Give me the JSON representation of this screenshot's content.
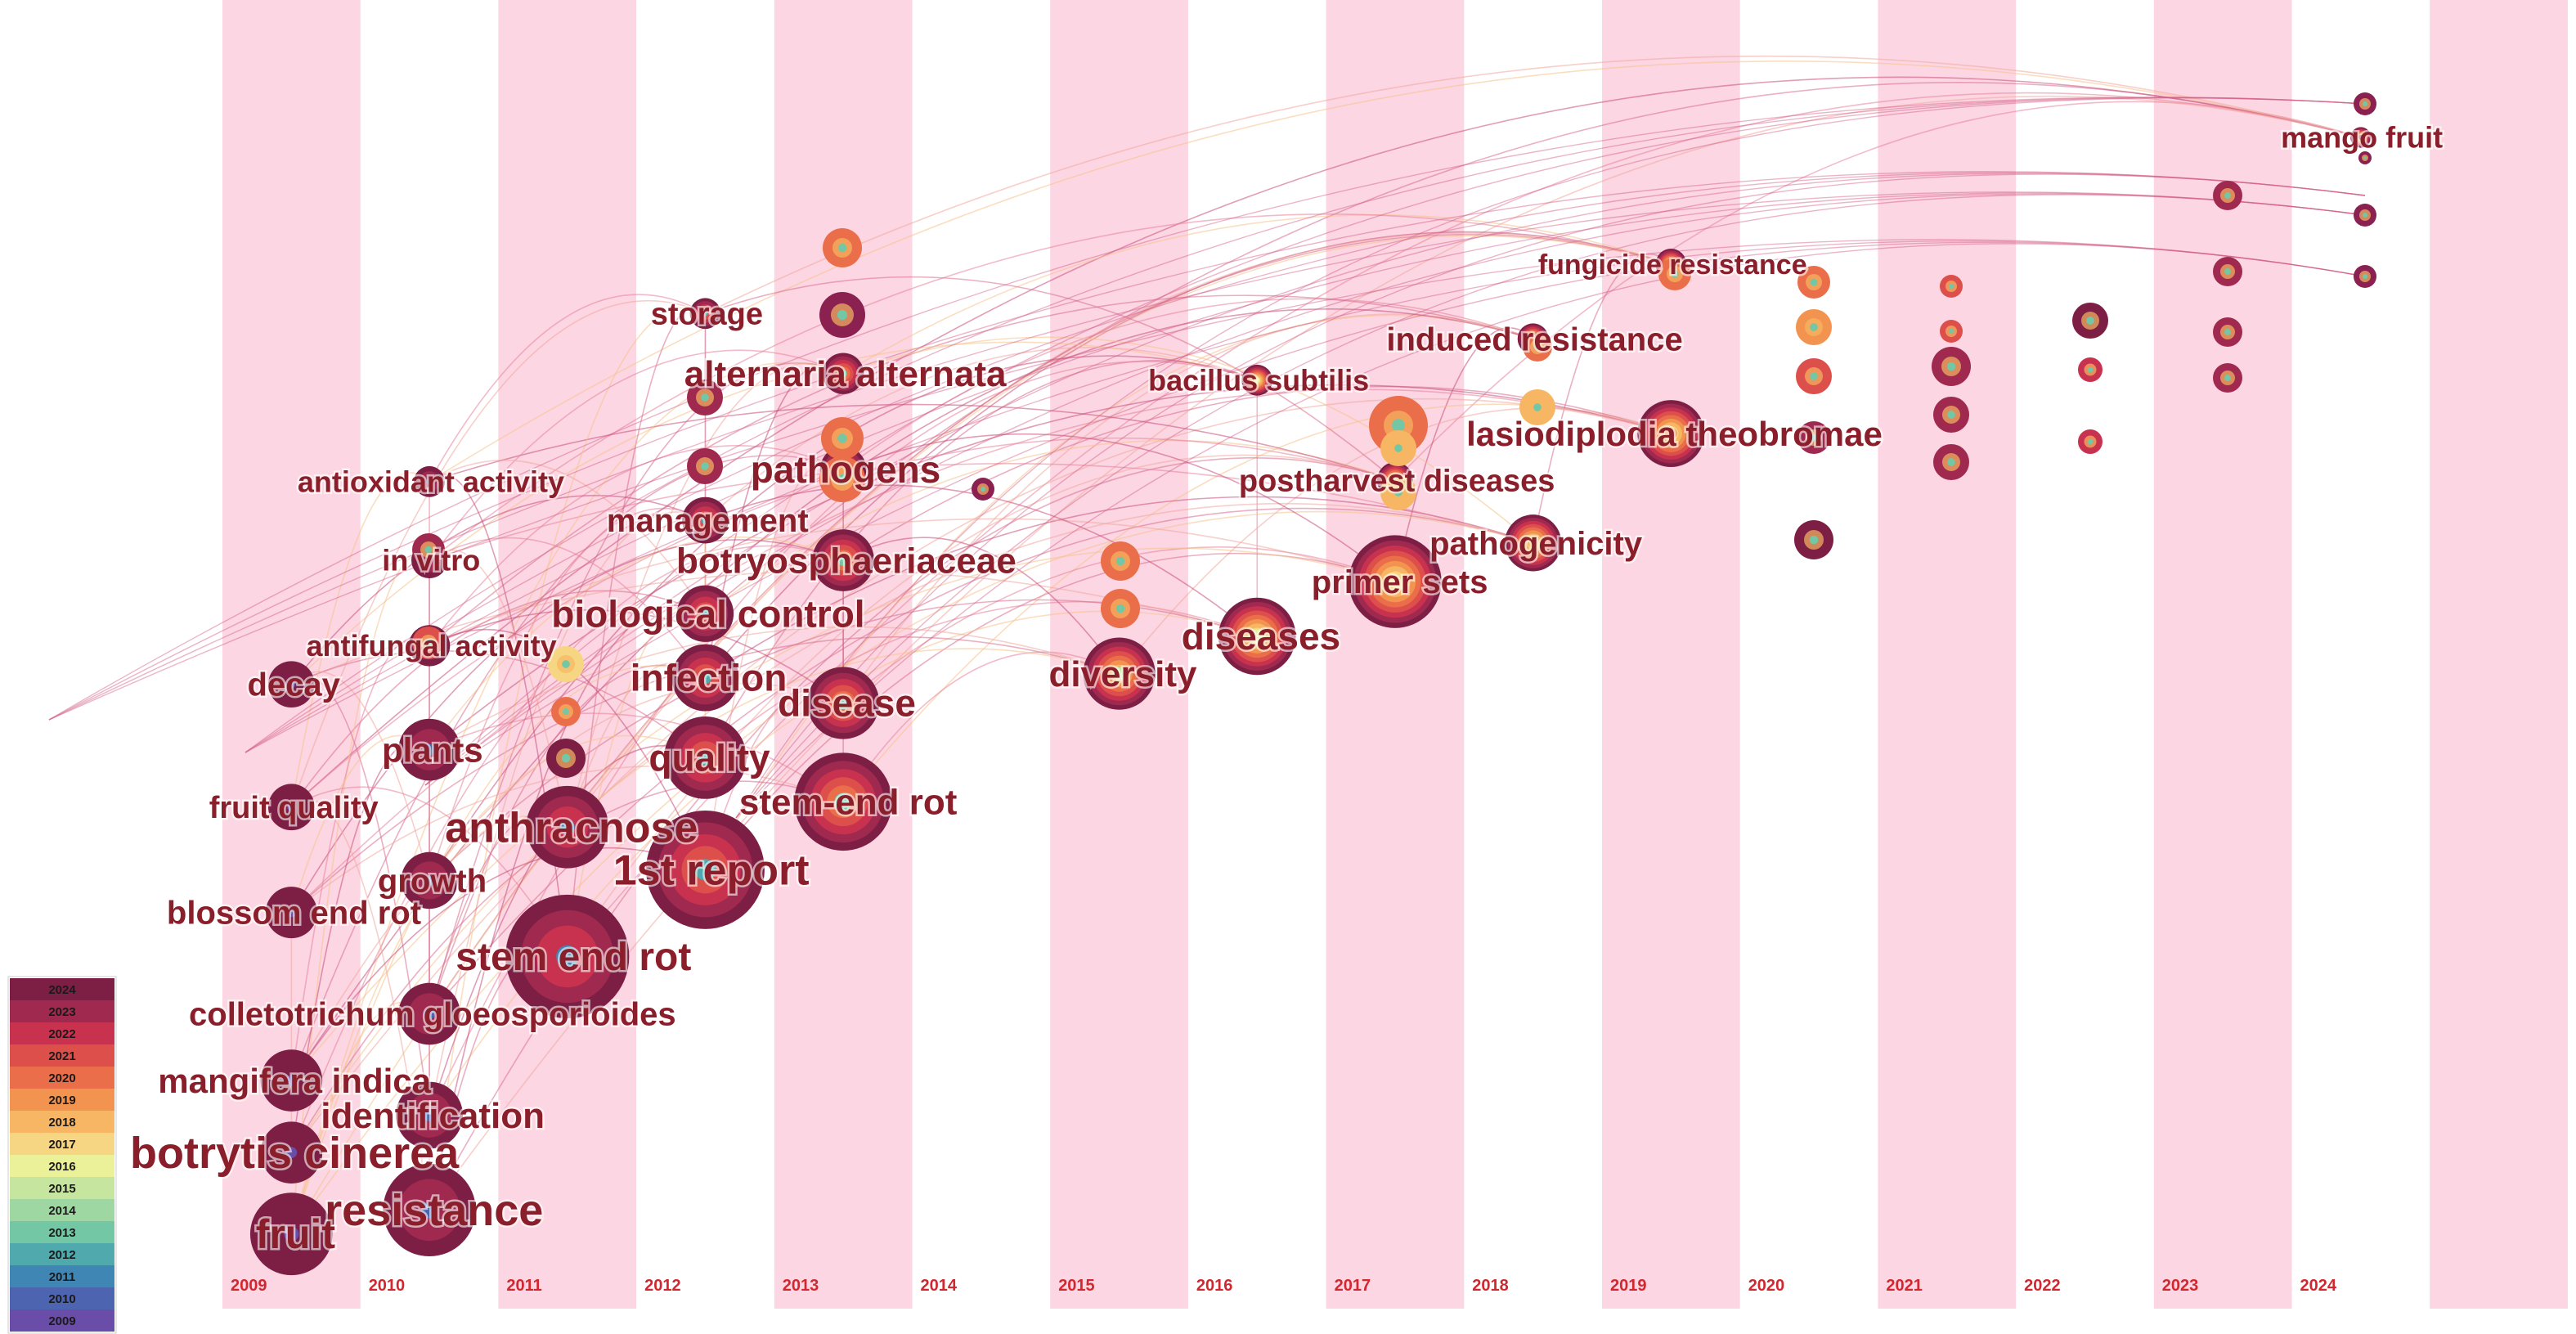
{
  "years": [
    "2009",
    "2010",
    "2011",
    "2012",
    "2013",
    "2014",
    "2015",
    "2016",
    "2017",
    "2018",
    "2019",
    "2020",
    "2021",
    "2022",
    "2023",
    "2024"
  ],
  "legend": {
    "years": [
      "2024",
      "2023",
      "2022",
      "2021",
      "2020",
      "2019",
      "2018",
      "2017",
      "2016",
      "2015",
      "2014",
      "2013",
      "2012",
      "2011",
      "2010",
      "2009"
    ],
    "colors": [
      "#7d1f45",
      "#a0294f",
      "#c8324e",
      "#dd4f4b",
      "#ea6e49",
      "#f2944f",
      "#f6b663",
      "#f7d683",
      "#eaf199",
      "#c6e69f",
      "#9fd7a2",
      "#73c7a4",
      "#4fa9ad",
      "#3f86b5",
      "#4d64b0",
      "#6a4da8"
    ]
  },
  "keywords": [
    {
      "label": "mango fruit",
      "year": 2024,
      "row": 0.103,
      "r": 0.004,
      "font": 36
    },
    {
      "label": "fungicide resistance",
      "year": 2019,
      "row": 0.198,
      "r": 0.006,
      "font": 34
    },
    {
      "label": "induced resistance",
      "year": 2018,
      "row": 0.254,
      "r": 0.006,
      "font": 40
    },
    {
      "label": "bacillus subtilis",
      "year": 2016,
      "row": 0.285,
      "r": 0.006,
      "font": 36
    },
    {
      "label": "lasiodiplodia theobromae",
      "year": 2019,
      "row": 0.325,
      "r": 0.013,
      "font": 42
    },
    {
      "label": "postharvest diseases",
      "year": 2017,
      "row": 0.36,
      "r": 0.007,
      "font": 38
    },
    {
      "label": "pathogenicity",
      "year": 2018,
      "row": 0.407,
      "r": 0.011,
      "font": 40
    },
    {
      "label": "primer sets",
      "year": 2017,
      "row": 0.436,
      "r": 0.018,
      "font": 40
    },
    {
      "label": "diseases",
      "year": 2016,
      "row": 0.477,
      "r": 0.015,
      "font": 46
    },
    {
      "label": "diversity",
      "year": 2015,
      "row": 0.505,
      "r": 0.014,
      "font": 44
    },
    {
      "label": "storage",
      "year": 2012,
      "row": 0.235,
      "r": 0.006,
      "font": 38
    },
    {
      "label": "alternaria alternata",
      "year": 2013,
      "row": 0.28,
      "r": 0.008,
      "font": 44
    },
    {
      "label": "pathogens",
      "year": 2013,
      "row": 0.352,
      "r": 0.009,
      "font": 46
    },
    {
      "label": "management",
      "year": 2012,
      "row": 0.39,
      "r": 0.009,
      "font": 40
    },
    {
      "label": "botryosphaeriaceae",
      "year": 2013,
      "row": 0.42,
      "r": 0.012,
      "font": 44
    },
    {
      "label": "biological control",
      "year": 2012,
      "row": 0.46,
      "r": 0.011,
      "font": 46
    },
    {
      "label": "infection",
      "year": 2012,
      "row": 0.508,
      "r": 0.013,
      "font": 46
    },
    {
      "label": "disease",
      "year": 2013,
      "row": 0.527,
      "r": 0.014,
      "font": 46
    },
    {
      "label": "quality",
      "year": 2012,
      "row": 0.568,
      "r": 0.016,
      "font": 46
    },
    {
      "label": "stem-end rot",
      "year": 2013,
      "row": 0.601,
      "r": 0.019,
      "font": 44
    },
    {
      "label": "antioxidant activity",
      "year": 2010,
      "row": 0.361,
      "r": 0.006,
      "font": 36
    },
    {
      "label": "in vitro",
      "year": 2010,
      "row": 0.42,
      "r": 0.007,
      "font": 36
    },
    {
      "label": "antifungal activity",
      "year": 2010,
      "row": 0.484,
      "r": 0.008,
      "font": 36
    },
    {
      "label": "decay",
      "year": 2009,
      "row": 0.513,
      "r": 0.009,
      "font": 40
    },
    {
      "label": "plants",
      "year": 2010,
      "row": 0.562,
      "r": 0.012,
      "font": 42
    },
    {
      "label": "fruit quality",
      "year": 2009,
      "row": 0.605,
      "r": 0.009,
      "font": 38
    },
    {
      "label": "anthracnose",
      "year": 2011,
      "row": 0.62,
      "r": 0.016,
      "font": 52
    },
    {
      "label": "1st report",
      "year": 2012,
      "row": 0.652,
      "r": 0.023,
      "font": 52
    },
    {
      "label": "growth",
      "year": 2010,
      "row": 0.66,
      "r": 0.011,
      "font": 40
    },
    {
      "label": "blossom end rot",
      "year": 2009,
      "row": 0.684,
      "r": 0.01,
      "font": 40
    },
    {
      "label": "stem end rot",
      "year": 2011,
      "row": 0.717,
      "r": 0.024,
      "font": 48
    },
    {
      "label": "colletotrichum gloeosporioides",
      "year": 2010,
      "row": 0.76,
      "r": 0.012,
      "font": 40
    },
    {
      "label": "mangifera indica",
      "year": 2009,
      "row": 0.81,
      "r": 0.012,
      "font": 42
    },
    {
      "label": "identification",
      "year": 2010,
      "row": 0.836,
      "r": 0.013,
      "font": 44
    },
    {
      "label": "botrytis cinerea",
      "year": 2009,
      "row": 0.864,
      "r": 0.012,
      "font": 54
    },
    {
      "label": "resistance",
      "year": 2010,
      "row": 0.907,
      "r": 0.018,
      "font": 54
    },
    {
      "label": "fruit",
      "year": 2009,
      "row": 0.925,
      "r": 0.016,
      "font": 50
    }
  ]
}
